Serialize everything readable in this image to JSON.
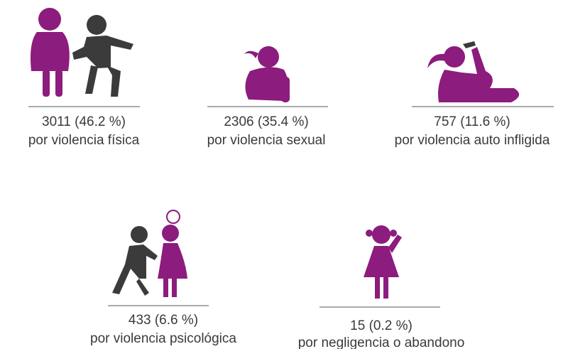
{
  "items": [
    {
      "count": "3011 (46.2 %)",
      "label": "por violencia física"
    },
    {
      "count": "2306 (35.4 %)",
      "label": "por violencia sexual"
    },
    {
      "count": "757 (11.6 %)",
      "label": "por violencia auto infligida"
    },
    {
      "count": "433 (6.6 %)",
      "label": "por violencia psicológica"
    },
    {
      "count": "15 (0.2 %)",
      "label": "por negligencia o abandono"
    }
  ]
}
